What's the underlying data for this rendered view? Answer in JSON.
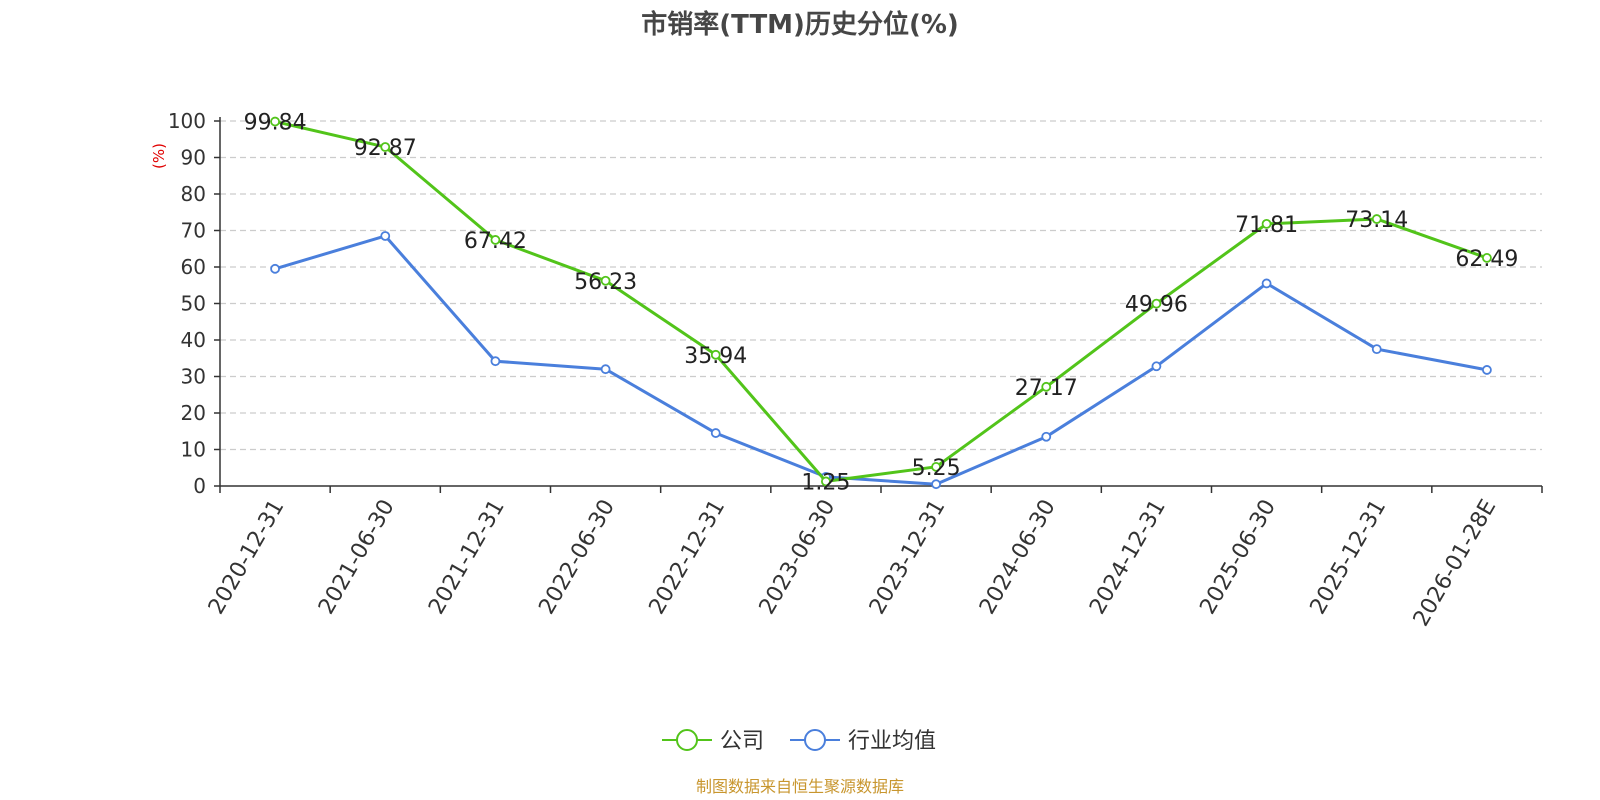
{
  "title": "市销率(TTM)历史分位(%)",
  "source": "制图数据来自恒生聚源数据库",
  "chart_data": {
    "type": "line",
    "title": "市销率(TTM)历史分位(%)",
    "ylabel": "(%)",
    "xlabel": "",
    "ylim": [
      0,
      100
    ],
    "yticks": [
      0,
      10,
      20,
      30,
      40,
      50,
      60,
      70,
      80,
      90,
      100
    ],
    "grid": true,
    "legend_position": "bottom-center",
    "categories": [
      "2020-12-31",
      "2021-06-30",
      "2021-12-31",
      "2022-06-30",
      "2022-12-31",
      "2023-06-30",
      "2023-12-31",
      "2024-06-30",
      "2024-12-31",
      "2025-06-30",
      "2025-12-31",
      "2026-01-28E"
    ],
    "series": [
      {
        "name": "公司",
        "color": "#52c41a",
        "values": [
          99.84,
          92.87,
          67.42,
          56.23,
          35.94,
          1.25,
          5.25,
          27.17,
          49.96,
          71.81,
          73.14,
          62.49
        ],
        "labels": [
          "99.84",
          "92.87",
          "67.42",
          "56.23",
          "35.94",
          "1.25",
          "5.25",
          "27.17",
          "49.96",
          "71.81",
          "73.14",
          "62.49"
        ]
      },
      {
        "name": "行业均值",
        "color": "#4a7fdc",
        "values": [
          59.5,
          68.5,
          34.2,
          32.0,
          14.5,
          2.5,
          0.5,
          13.5,
          32.8,
          55.5,
          37.5,
          31.8
        ]
      }
    ]
  }
}
